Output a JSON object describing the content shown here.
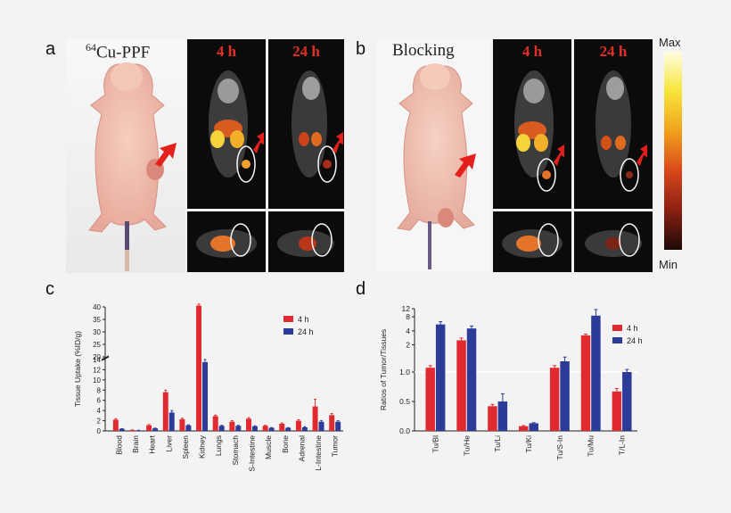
{
  "panels": {
    "a": "a",
    "b": "b",
    "c": "c",
    "d": "d"
  },
  "panel_a": {
    "photo_title_sup": "64",
    "photo_title_main": "Cu-PPF",
    "scan_times": [
      "4 h",
      "24 h"
    ]
  },
  "panel_b": {
    "photo_title": "Blocking",
    "scan_times": [
      "4 h",
      "24 h"
    ]
  },
  "colorbar": {
    "max_label": "Max",
    "min_label": "Min",
    "colors": [
      "#fffde0",
      "#f7e53a",
      "#f0a21c",
      "#d9481a",
      "#8a1f12",
      "#1c0a08"
    ]
  },
  "colors": {
    "series_4h": "#e02a2f",
    "series_24h": "#2b3b97",
    "arrow": "#e3201b"
  },
  "chart_data": [
    {
      "type": "bar",
      "ylabel": "Tissue Uptake (%ID/g)",
      "categories": [
        "Blood",
        "Brain",
        "Heart",
        "Liver",
        "Spleen",
        "Kidney",
        "Lungs",
        "Stomach",
        "S-Intestine",
        "Muscle",
        "Bone",
        "Adrenal",
        "L-Intestine",
        "Tumor"
      ],
      "series": [
        {
          "name": "4 h",
          "values": [
            2.2,
            0.15,
            1.1,
            7.6,
            2.3,
            40.5,
            2.9,
            1.8,
            2.4,
            1.0,
            1.4,
            2.0,
            4.8,
            3.1
          ],
          "errors": [
            0.2,
            0.05,
            0.15,
            0.4,
            0.2,
            0.6,
            0.2,
            0.2,
            0.2,
            0.1,
            0.15,
            0.2,
            1.4,
            0.3
          ]
        },
        {
          "name": "24 h",
          "values": [
            0.4,
            0.1,
            0.5,
            3.6,
            1.1,
            13.5,
            1.0,
            1.0,
            0.9,
            0.6,
            0.6,
            0.7,
            1.8,
            1.8
          ],
          "errors": [
            0.05,
            0.03,
            0.05,
            0.4,
            0.1,
            0.5,
            0.1,
            0.1,
            0.1,
            0.05,
            0.05,
            0.1,
            0.2,
            0.2
          ]
        }
      ],
      "yticks_lower": [
        "0",
        "2",
        "4",
        "6",
        "8",
        "10",
        "12",
        "14"
      ],
      "yticks_upper": [
        "20",
        "25",
        "30",
        "35",
        "40"
      ],
      "axis_break": [
        14,
        20
      ],
      "legend": "top-right"
    },
    {
      "type": "bar",
      "ylabel": "Ratios of Tumor/Tissues",
      "categories": [
        "Tu/Bl",
        "Tu/He",
        "Tu/Li",
        "Tu/Ki",
        "Tu/S-In",
        "Tu/Mu",
        "T/L-In"
      ],
      "series": [
        {
          "name": "4 h",
          "values": [
            1.1,
            2.5,
            0.42,
            0.08,
            1.1,
            3.2,
            0.67
          ],
          "errors": [
            0.05,
            0.3,
            0.03,
            0.01,
            0.05,
            0.2,
            0.05
          ]
        },
        {
          "name": "24 h",
          "values": [
            5.5,
            4.5,
            0.5,
            0.13,
            1.25,
            8.5,
            1.0
          ],
          "errors": [
            0.8,
            0.6,
            0.13,
            0.01,
            0.1,
            3.0,
            0.06
          ]
        }
      ],
      "yticks": [
        "0.0",
        "0.5",
        "1.0",
        "2",
        "4",
        "8",
        "12"
      ],
      "axis_break": [
        1.0,
        1.5
      ],
      "legend": "top-right"
    }
  ]
}
